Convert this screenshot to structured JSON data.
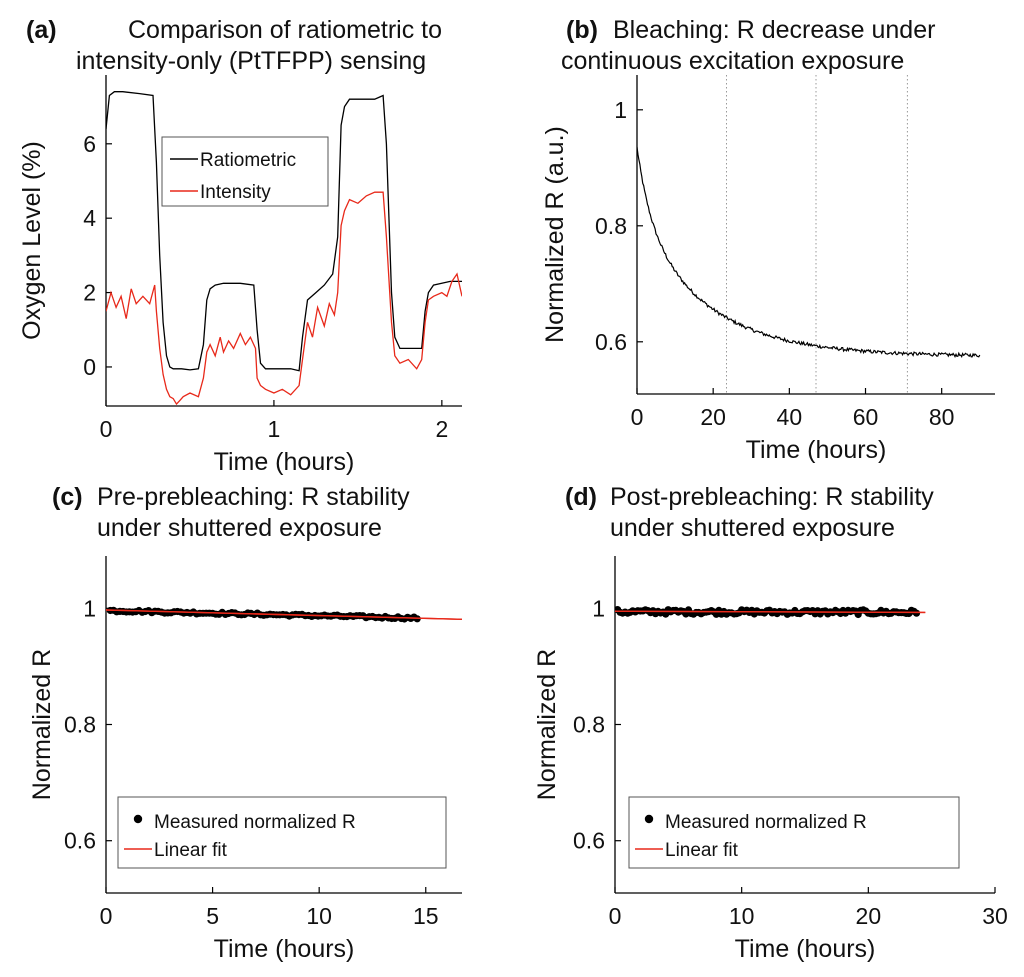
{
  "chart_data": [
    {
      "panel": "a",
      "type": "line",
      "title_label": "(a)",
      "title_lines": [
        "Comparison of ratiometric to",
        "intensity-only (PtTFPP) sensing"
      ],
      "xlabel": "Time (hours)",
      "ylabel": "Oxygen Level (%)",
      "xlim": [
        0,
        2.12
      ],
      "ylim": [
        -1.05,
        7.85
      ],
      "xticks": [
        0,
        1,
        2
      ],
      "yticks": [
        0,
        2,
        4,
        6
      ],
      "legend": {
        "position": "top-center",
        "entries": [
          "Ratiometric",
          "Intensity"
        ]
      },
      "series": [
        {
          "name": "Ratiometric",
          "color": "#000000",
          "x": [
            0,
            0.02,
            0.05,
            0.1,
            0.2,
            0.28,
            0.3,
            0.32,
            0.34,
            0.36,
            0.38,
            0.4,
            0.45,
            0.5,
            0.55,
            0.58,
            0.6,
            0.62,
            0.65,
            0.7,
            0.8,
            0.88,
            0.9,
            0.92,
            0.95,
            1.0,
            1.05,
            1.1,
            1.15,
            1.17,
            1.2,
            1.25,
            1.3,
            1.35,
            1.38,
            1.4,
            1.42,
            1.45,
            1.5,
            1.6,
            1.65,
            1.67,
            1.7,
            1.72,
            1.75,
            1.8,
            1.85,
            1.88,
            1.9,
            1.92,
            1.95,
            2.0,
            2.05,
            2.1,
            2.12
          ],
          "y": [
            6.4,
            7.3,
            7.4,
            7.4,
            7.35,
            7.3,
            5.5,
            3.0,
            1.2,
            0.3,
            0.0,
            -0.05,
            -0.05,
            -0.08,
            -0.05,
            0.6,
            1.8,
            2.1,
            2.2,
            2.25,
            2.25,
            2.2,
            1.0,
            0.1,
            -0.05,
            -0.05,
            -0.05,
            -0.05,
            -0.1,
            0.8,
            1.8,
            2.0,
            2.2,
            2.5,
            3.5,
            6.5,
            7.0,
            7.2,
            7.2,
            7.2,
            7.3,
            6.0,
            2.0,
            0.8,
            0.5,
            0.5,
            0.5,
            0.5,
            1.5,
            2.0,
            2.2,
            2.25,
            2.3,
            2.3,
            2.3
          ]
        },
        {
          "name": "Intensity",
          "color": "#e8291a",
          "x": [
            0,
            0.03,
            0.06,
            0.09,
            0.12,
            0.15,
            0.18,
            0.22,
            0.26,
            0.29,
            0.3,
            0.32,
            0.34,
            0.36,
            0.38,
            0.4,
            0.42,
            0.44,
            0.46,
            0.5,
            0.55,
            0.58,
            0.6,
            0.62,
            0.65,
            0.68,
            0.7,
            0.73,
            0.76,
            0.8,
            0.83,
            0.86,
            0.89,
            0.9,
            0.92,
            0.95,
            1.0,
            1.05,
            1.1,
            1.15,
            1.17,
            1.2,
            1.23,
            1.26,
            1.3,
            1.33,
            1.36,
            1.38,
            1.4,
            1.42,
            1.45,
            1.5,
            1.55,
            1.6,
            1.65,
            1.67,
            1.7,
            1.72,
            1.75,
            1.8,
            1.85,
            1.88,
            1.9,
            1.92,
            1.95,
            2.0,
            2.03,
            2.06,
            2.09,
            2.12
          ],
          "y": [
            1.5,
            2.0,
            1.6,
            1.9,
            1.3,
            2.1,
            1.7,
            1.9,
            1.7,
            2.2,
            1.5,
            0.5,
            -0.2,
            -0.6,
            -0.8,
            -0.85,
            -1.0,
            -0.9,
            -0.8,
            -0.7,
            -0.8,
            -0.3,
            0.4,
            0.6,
            0.3,
            0.8,
            0.4,
            0.7,
            0.5,
            0.9,
            0.6,
            0.8,
            0.5,
            -0.3,
            -0.5,
            -0.6,
            -0.7,
            -0.6,
            -0.75,
            -0.5,
            0.2,
            1.2,
            0.8,
            1.6,
            1.1,
            1.7,
            1.4,
            2.0,
            3.8,
            4.2,
            4.5,
            4.4,
            4.6,
            4.7,
            4.7,
            3.5,
            1.2,
            0.3,
            0.1,
            0.2,
            -0.05,
            0.2,
            1.2,
            1.8,
            1.9,
            2.0,
            1.9,
            2.3,
            2.5,
            1.9
          ]
        }
      ]
    },
    {
      "panel": "b",
      "type": "line",
      "title_label": "(b)",
      "title_lines": [
        "Bleaching: R decrease under",
        "continuous excitation exposure"
      ],
      "xlabel": "Time (hours)",
      "ylabel": "Normalized R (a.u.)",
      "xlim": [
        0,
        94
      ],
      "ylim": [
        0.51,
        1.06
      ],
      "xticks": [
        0,
        20,
        40,
        60,
        80
      ],
      "yticks": [
        0.6,
        0.8,
        1
      ],
      "vlines": [
        23.5,
        47,
        71
      ],
      "series": [
        {
          "name": "Normalized R",
          "color": "#000000",
          "decay": {
            "end_value": 0.575,
            "fast_amp": 0.115,
            "fast_tau": 3.5,
            "slow_amp": 0.245,
            "slow_tau": 18,
            "x_max": 90
          }
        }
      ]
    },
    {
      "panel": "c",
      "type": "scatter",
      "title_label": "(c)",
      "title_lines": [
        "Pre-prebleaching: R stability",
        "under shuttered exposure"
      ],
      "xlabel": "Time (hours)",
      "ylabel": "Normalized R",
      "xlim": [
        0,
        16.7
      ],
      "ylim": [
        0.51,
        1.09
      ],
      "xticks": [
        0,
        5,
        10,
        15
      ],
      "yticks": [
        0.6,
        0.8,
        1
      ],
      "legend": {
        "position": "bottom-left",
        "entries": [
          "Measured normalized R",
          "Linear fit"
        ]
      },
      "series": [
        {
          "name": "Measured normalized R",
          "color": "#000000",
          "x_range": [
            0.2,
            14.7
          ],
          "step": 0.15,
          "y_start": 0.996,
          "y_end": 0.983,
          "jitter": 0.002
        },
        {
          "name": "Linear fit",
          "color": "#e8291a",
          "x": [
            0,
            16.7
          ],
          "y": [
            0.997,
            0.981
          ]
        }
      ]
    },
    {
      "panel": "d",
      "type": "scatter",
      "title_label": "(d)",
      "title_lines": [
        "Post-prebleaching: R stability",
        "under shuttered exposure"
      ],
      "xlabel": "Time (hours)",
      "ylabel": "Normalized R",
      "xlim": [
        0,
        30
      ],
      "ylim": [
        0.51,
        1.09
      ],
      "xticks": [
        0,
        10,
        20,
        30
      ],
      "yticks": [
        0.6,
        0.8,
        1
      ],
      "legend": {
        "position": "bottom-left",
        "entries": [
          "Measured normalized R",
          "Linear fit"
        ]
      },
      "series": [
        {
          "name": "Measured normalized R",
          "color": "#000000",
          "x_range": [
            0.2,
            23.8
          ],
          "step": 0.2,
          "y_start": 0.994,
          "y_end": 0.993,
          "jitter": 0.004
        },
        {
          "name": "Linear fit",
          "color": "#e8291a",
          "x": [
            0,
            24.5
          ],
          "y": [
            0.995,
            0.993
          ]
        }
      ]
    }
  ]
}
